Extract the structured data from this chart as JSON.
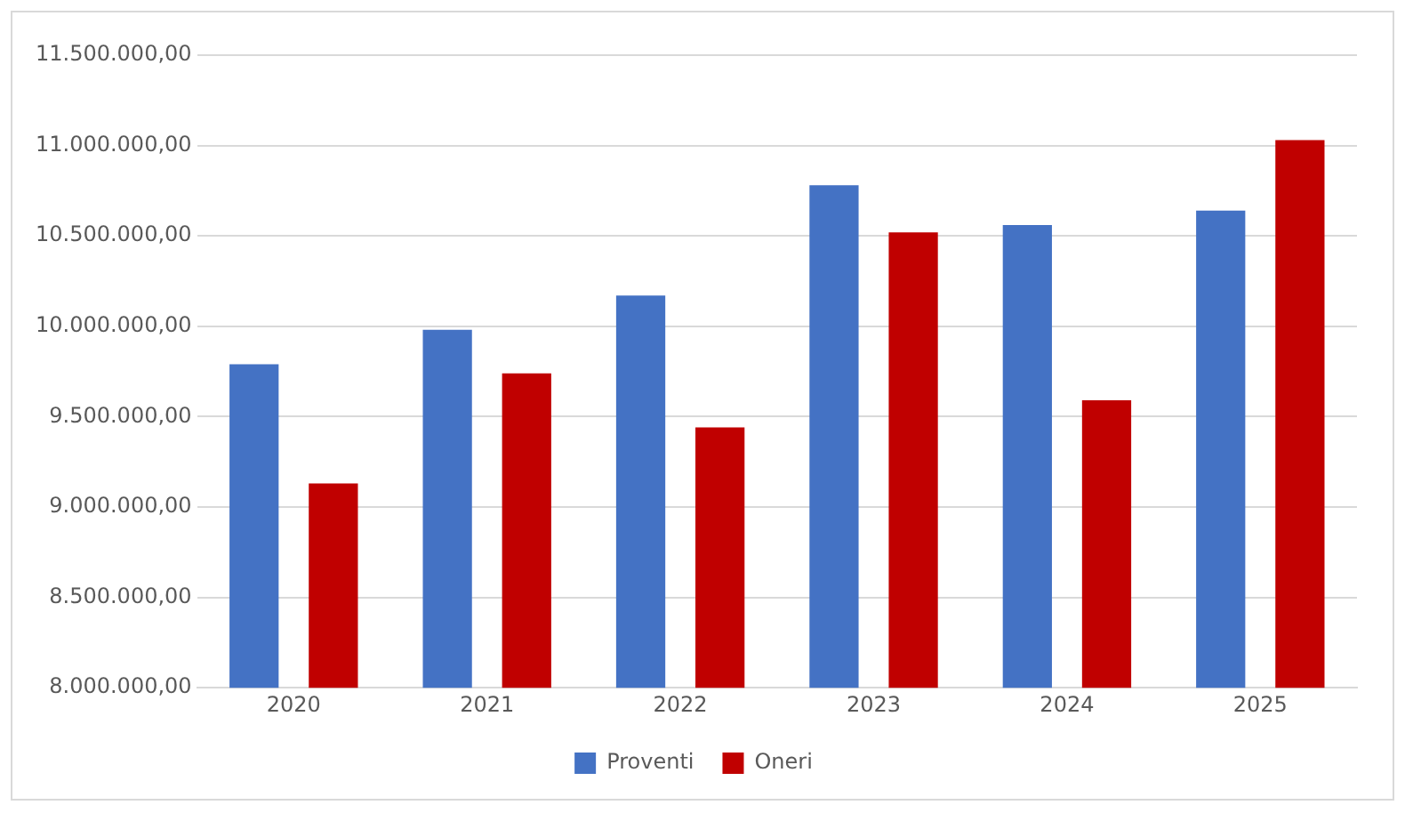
{
  "chart_data": {
    "type": "bar",
    "categories": [
      "2020",
      "2021",
      "2022",
      "2023",
      "2024",
      "2025"
    ],
    "series": [
      {
        "name": "Proventi",
        "color": "#4472c4",
        "values": [
          9790000,
          9980000,
          10170000,
          10780000,
          10560000,
          10640000
        ]
      },
      {
        "name": "Oneri",
        "color": "#c00000",
        "values": [
          9130000,
          9740000,
          9440000,
          10520000,
          9590000,
          11030000
        ]
      }
    ],
    "ylim": [
      8000000,
      11500000
    ],
    "yticks": [
      {
        "value": 8000000,
        "label": "8.000.000,00"
      },
      {
        "value": 8500000,
        "label": "8.500.000,00"
      },
      {
        "value": 9000000,
        "label": "9.000.000,00"
      },
      {
        "value": 9500000,
        "label": "9.500.000,00"
      },
      {
        "value": 10000000,
        "label": "10.000.000,00"
      },
      {
        "value": 10500000,
        "label": "10.500.000,00"
      },
      {
        "value": 11000000,
        "label": "11.000.000,00"
      },
      {
        "value": 11500000,
        "label": "11.500.000,00"
      }
    ],
    "grid": "y",
    "legend": "bottom"
  }
}
